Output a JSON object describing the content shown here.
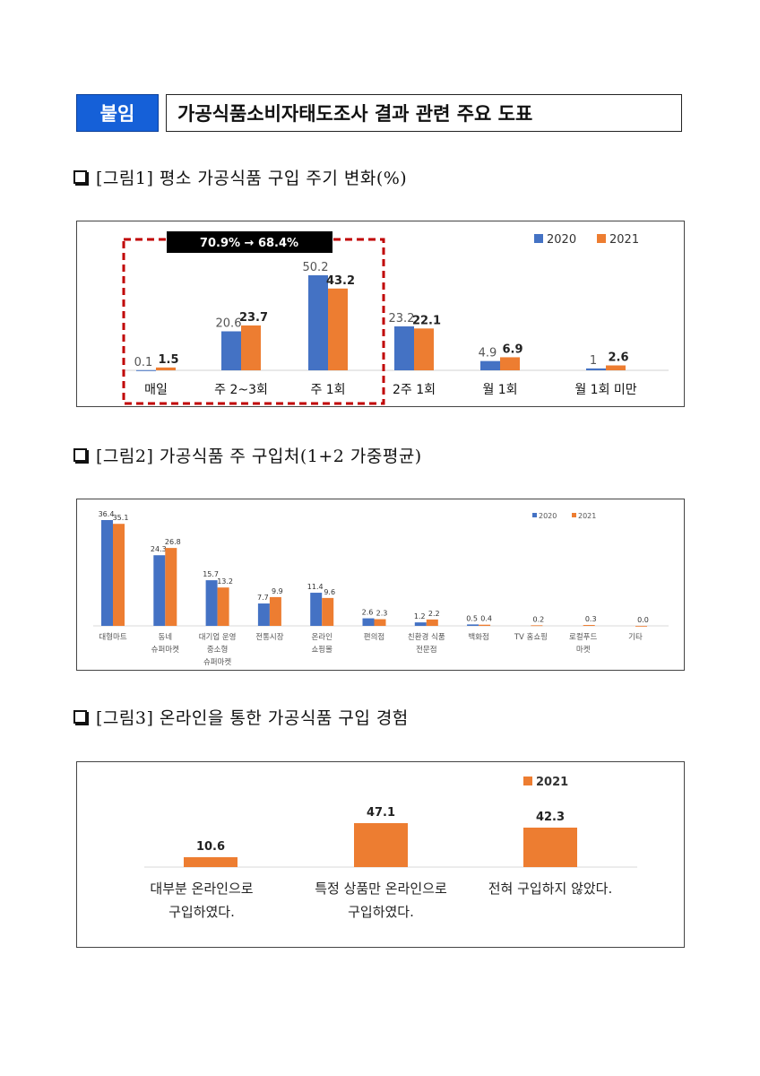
{
  "header": {
    "badge": "붙임",
    "title": "가공식품소비자태도조사 결과 관련 주요 도표"
  },
  "figures": [
    {
      "title": "[그림1] 평소 가공식품 구입 주기 변화(%)"
    },
    {
      "title": "[그림2] 가공식품 주 구입처(1+2 가중평균)"
    },
    {
      "title": "[그림3] 온라인을 통한 가공식품 구입 경험"
    }
  ],
  "colors": {
    "blue": "#4472c4",
    "orange": "#ed7d31",
    "badge": "#1560d8",
    "highlight": "#c00000"
  },
  "chart_data": [
    {
      "type": "bar",
      "categories": [
        "매일",
        "주 2~3회",
        "주 1회",
        "2주 1회",
        "월 1회",
        "월 1회 미만"
      ],
      "series": [
        {
          "name": "2020",
          "values": [
            0.1,
            20.6,
            50.2,
            23.2,
            4.9,
            1.0
          ]
        },
        {
          "name": "2021",
          "values": [
            1.5,
            23.7,
            43.2,
            22.1,
            6.9,
            2.6
          ]
        }
      ],
      "annotation": "70.9% → 68.4%",
      "legend": "top-right",
      "grid": false
    },
    {
      "type": "bar",
      "categories": [
        "대형마트",
        "동네\n슈퍼마켓",
        "대기업 운영\n중소형\n슈퍼마켓",
        "전통시장",
        "온라인\n쇼핑몰",
        "편의점",
        "친환경 식품\n전문점",
        "백화점",
        "TV 홈쇼핑",
        "로컬푸드\n마켓",
        "기타"
      ],
      "series": [
        {
          "name": "2020",
          "values": [
            36.4,
            24.3,
            15.7,
            7.7,
            11.4,
            2.6,
            1.2,
            0.5,
            null,
            null,
            null
          ]
        },
        {
          "name": "2021",
          "values": [
            35.1,
            26.8,
            13.2,
            9.9,
            9.6,
            2.3,
            2.2,
            0.4,
            0.2,
            0.3,
            0.0
          ]
        }
      ],
      "legend": "top-right",
      "grid": false
    },
    {
      "type": "bar",
      "categories": [
        "대부분 온라인으로\n구입하였다.",
        "특정 상품만 온라인으로\n구입하였다.",
        "전혀 구입하지 않았다."
      ],
      "series": [
        {
          "name": "2021",
          "values": [
            10.6,
            47.1,
            42.3
          ]
        }
      ],
      "legend": "top-right",
      "grid": false
    }
  ]
}
